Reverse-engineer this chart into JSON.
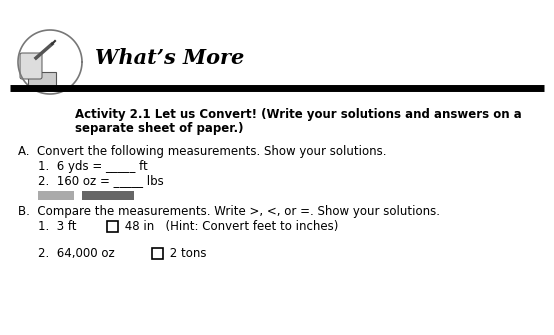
{
  "title": "What’s More",
  "activity_line1": "Activity 2.1 Let us Convert! (Write your solutions and answers on a",
  "activity_line2": "separate sheet of paper.)",
  "section_a_header": "A.  Convert the following measurements. Show your solutions.",
  "section_a_item1": "1.  6 yds = _____ ft",
  "section_a_item2": "2.  160 oz = _____ lbs",
  "section_b_header": "B.  Compare the measurements. Write >, <, or =. Show your solutions.",
  "section_b_item1_pre": "1.  3 ft ",
  "section_b_item1_post": " 48 in   (Hint: Convert feet to inches)",
  "section_b_item2_pre": "2.  64,000 oz ",
  "section_b_item2_post": " 2 tons",
  "title_fontsize": 15,
  "activity_fontsize": 8.5,
  "body_fontsize": 8.5,
  "bg_color": "#ffffff",
  "text_color": "#000000",
  "line_color": "#000000",
  "gray_light": "#aaaaaa",
  "gray_dark": "#666666"
}
